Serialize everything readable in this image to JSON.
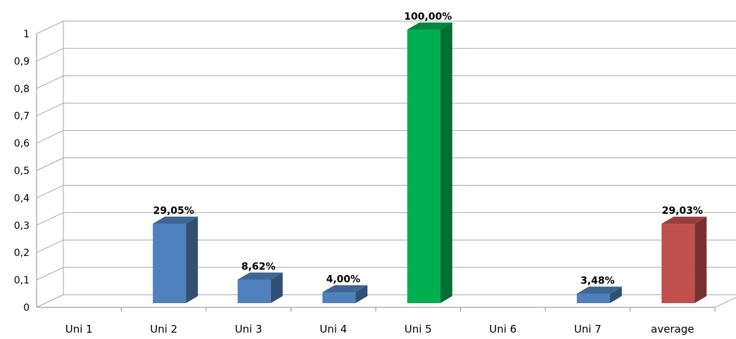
{
  "chart_data": {
    "type": "bar",
    "title": "",
    "xlabel": "",
    "ylabel": "",
    "ylim": [
      0,
      1
    ],
    "yticks": [
      "0",
      "0,1",
      "0,2",
      "0,3",
      "0,4",
      "0,5",
      "0,6",
      "0,7",
      "0,8",
      "0,9",
      "1"
    ],
    "categories": [
      "Uni 1",
      "Uni 2",
      "Uni 3",
      "Uni 4",
      "Uni 5",
      "Uni 6",
      "Uni 7",
      "average"
    ],
    "values": [
      0,
      0.2905,
      0.0862,
      0.04,
      1.0,
      0,
      0.0348,
      0.2903
    ],
    "data_labels": [
      "",
      "29,05%",
      "8,62%",
      "4,00%",
      "100,00%",
      "",
      "3,48%",
      "29,03%"
    ],
    "bar_colors": [
      "#4f81bd",
      "#4f81bd",
      "#4f81bd",
      "#4f81bd",
      "#00b050",
      "#4f81bd",
      "#4f81bd",
      "#c0504d"
    ],
    "grid": true,
    "legend": "none",
    "style": "3d-column"
  }
}
